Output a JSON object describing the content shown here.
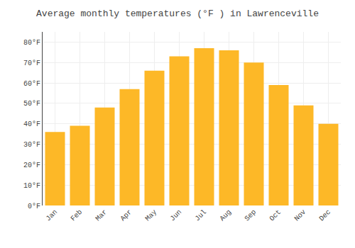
{
  "chart_data": {
    "type": "bar",
    "title": "Average monthly temperatures (°F ) in Lawrenceville",
    "categories": [
      "Jan",
      "Feb",
      "Mar",
      "Apr",
      "May",
      "Jun",
      "Jul",
      "Aug",
      "Sep",
      "Oct",
      "Nov",
      "Dec"
    ],
    "values": [
      36,
      39,
      48,
      57,
      66,
      73,
      77,
      76,
      70,
      59,
      49,
      40
    ],
    "color": "#FDB827",
    "ylim": [
      0,
      85
    ],
    "yticks": [
      {
        "value": 0,
        "label": "0°F"
      },
      {
        "value": 10,
        "label": "10°F"
      },
      {
        "value": 20,
        "label": "20°F"
      },
      {
        "value": 30,
        "label": "30°F"
      },
      {
        "value": 40,
        "label": "40°F"
      },
      {
        "value": 50,
        "label": "50°F"
      },
      {
        "value": 60,
        "label": "60°F"
      },
      {
        "value": 70,
        "label": "70°F"
      },
      {
        "value": 80,
        "label": "80°F"
      }
    ],
    "grid": true
  }
}
